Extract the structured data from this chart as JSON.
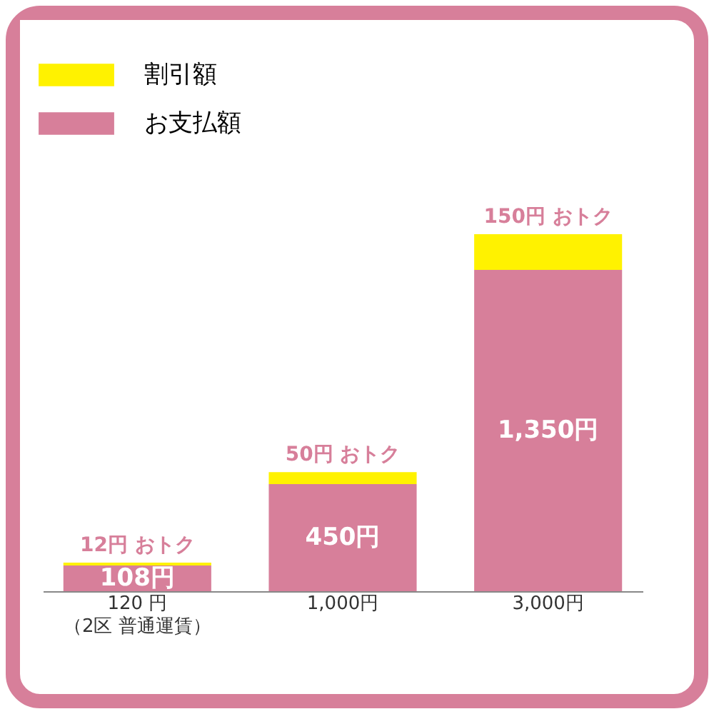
{
  "chart_data": {
    "type": "bar",
    "stacked": true,
    "categories": [
      "120 円（2区 普通運賃）",
      "1,000円",
      "3,000円"
    ],
    "series": [
      {
        "name": "お支払額",
        "color": "#d77f9a",
        "values": [
          108,
          450,
          1350
        ],
        "value_labels": [
          "108円",
          "450円",
          "1,350円"
        ]
      },
      {
        "name": "割引額",
        "color": "#fff200",
        "values": [
          12,
          50,
          150
        ],
        "value_labels": [
          "12円 おトク",
          "50円 おトク",
          "150円 おトク"
        ]
      }
    ],
    "legend": "top left",
    "grid": false
  }
}
